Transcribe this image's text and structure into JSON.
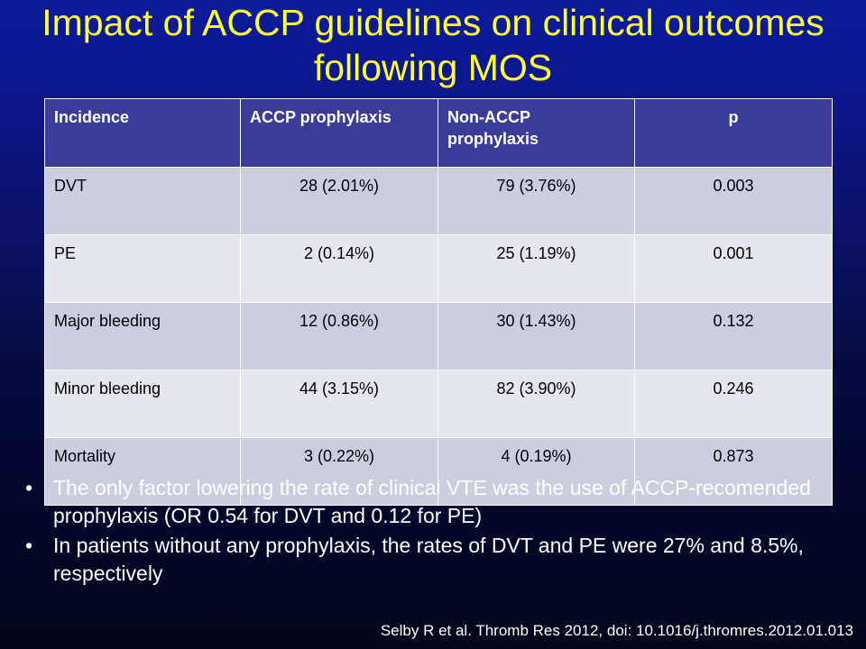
{
  "slide": {
    "title": "Impact of ACCP guidelines on clinical outcomes following MOS"
  },
  "table": {
    "headers": [
      "Incidence",
      "ACCP prophylaxis",
      "Non-ACCP prophylaxis",
      "p"
    ],
    "rows": [
      [
        "DVT",
        "28 (2.01%)",
        "79 (3.76%)",
        "0.003"
      ],
      [
        "PE",
        "2 (0.14%)",
        "25 (1.19%)",
        "0.001"
      ],
      [
        "Major bleeding",
        "12 (0.86%)",
        "30 (1.43%)",
        "0.132"
      ],
      [
        "Minor bleeding",
        "44 (3.15%)",
        "82 (3.90%)",
        "0.246"
      ],
      [
        "Mortality",
        "3 (0.22%)",
        "4 (0.19%)",
        "0.873"
      ]
    ]
  },
  "bullets": [
    "The only factor lowering the rate of clinical VTE was the use of ACCP-recomended prophylaxis (OR 0.54 for DVT and 0.12 for PE)",
    "In patients without any prophylaxis, the rates of DVT and PE were 27% and 8.5%, respectively"
  ],
  "bullet_symbol": "•",
  "citation": "Selby R et al. Thromb Res 2012, doi: 10.1016/j.thromres.2012.01.013",
  "colors": {
    "title": "#ffff33",
    "header_bg": "#3b3c9a",
    "row_odd": "#cdcde0",
    "row_even": "#e6e6ef"
  }
}
